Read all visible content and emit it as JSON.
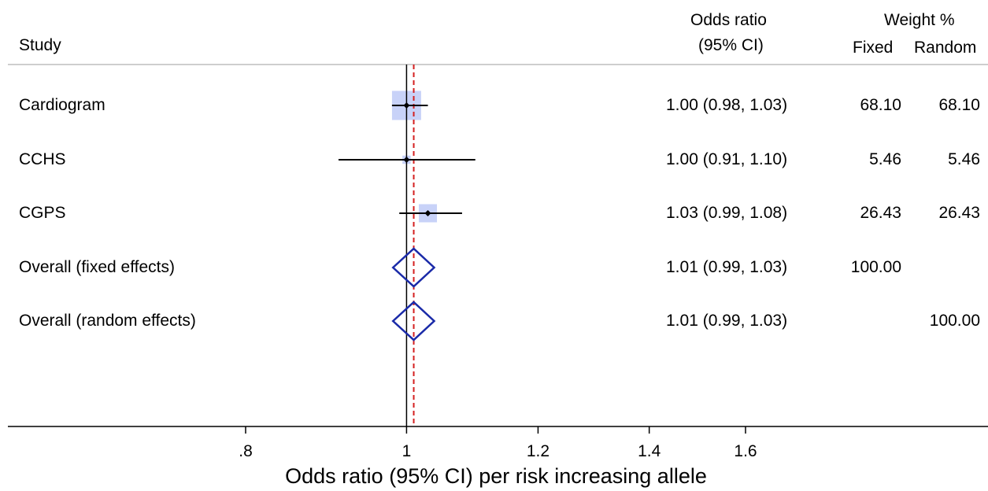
{
  "header": {
    "study": "Study",
    "or_line1": "Odds ratio",
    "or_line2": "(95% CI)",
    "weight": "Weight %",
    "fixed": "Fixed",
    "random": "Random"
  },
  "chart_data": {
    "type": "forest",
    "xlabel": "Odds ratio (95% CI) per risk increasing allele",
    "x_ticks": [
      ".8",
      "1",
      "1.2",
      "1.4",
      "1.6"
    ],
    "x_tick_values": [
      0.8,
      1.0,
      1.2,
      1.4,
      1.6
    ],
    "x_scale": "log",
    "null_line": 1.0,
    "pooled_line": 1.01,
    "colors": {
      "marker": "#000000",
      "weight_box": "#c8d2f8",
      "diamond": "#1a2aa8",
      "pooled_line": "#d42020",
      "axis": "#000000"
    },
    "studies": [
      {
        "name": "Cardiogram",
        "or": 1.0,
        "lo": 0.98,
        "hi": 1.03,
        "ci_text": "1.00 (0.98, 1.03)",
        "fixed": "68.10",
        "random": "68.10",
        "weight": 68.1
      },
      {
        "name": "CCHS",
        "or": 1.0,
        "lo": 0.91,
        "hi": 1.1,
        "ci_text": "1.00 (0.91, 1.10)",
        "fixed": "5.46",
        "random": "5.46",
        "weight": 5.46
      },
      {
        "name": "CGPS",
        "or": 1.03,
        "lo": 0.99,
        "hi": 1.08,
        "ci_text": "1.03 (0.99, 1.08)",
        "fixed": "26.43",
        "random": "26.43",
        "weight": 26.43
      }
    ],
    "overall": [
      {
        "name": "Overall  (fixed effects)",
        "or": 1.01,
        "lo": 0.99,
        "hi": 1.03,
        "ci_text": "1.01 (0.99, 1.03)",
        "fixed": "100.00",
        "random": ""
      },
      {
        "name": "Overall  (random effects)",
        "or": 1.01,
        "lo": 0.99,
        "hi": 1.03,
        "ci_text": "1.01 (0.99, 1.03)",
        "fixed": "",
        "random": "100.00"
      }
    ]
  }
}
